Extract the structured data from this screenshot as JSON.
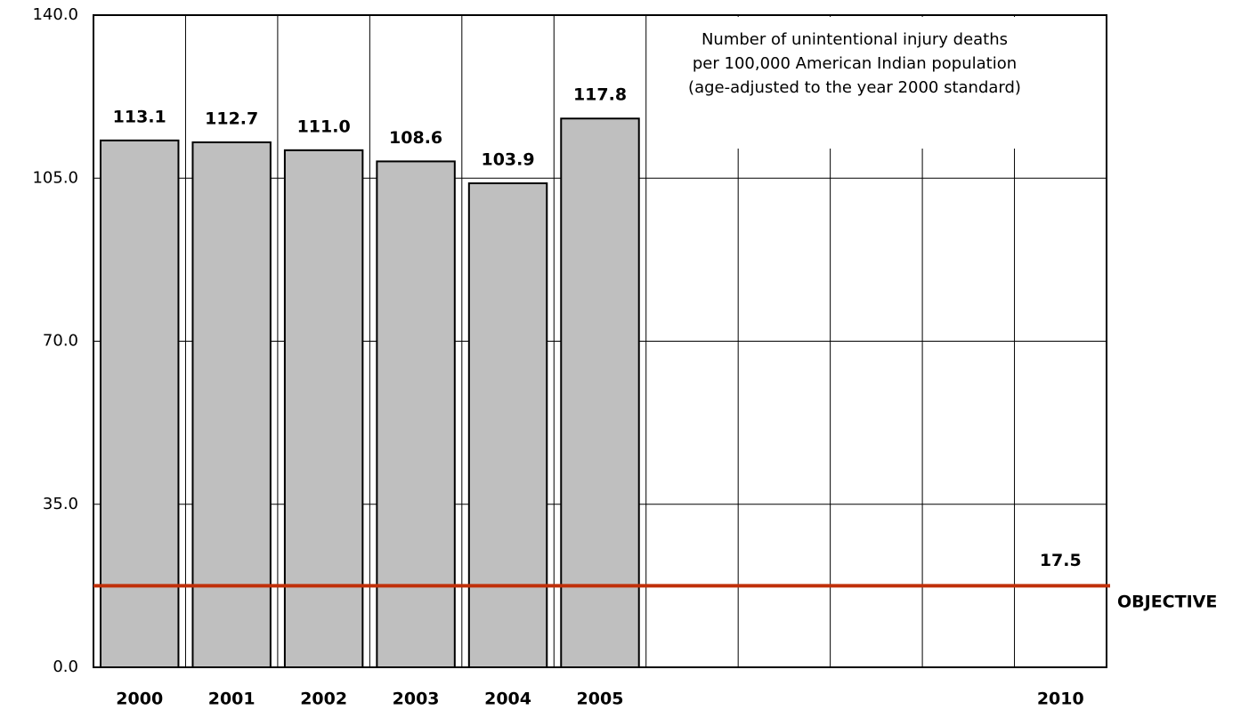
{
  "chart_data": {
    "type": "bar",
    "categories": [
      "2000",
      "2001",
      "2002",
      "2003",
      "2004",
      "2005",
      null,
      null,
      null,
      null,
      "2010"
    ],
    "values": [
      113.1,
      112.7,
      111.0,
      108.6,
      103.9,
      117.8,
      null,
      null,
      null,
      null,
      null
    ],
    "value_labels": [
      "113.1",
      "112.7",
      "111.0",
      "108.6",
      "103.9",
      "117.8",
      null,
      null,
      null,
      null,
      null
    ],
    "color": "#bfbfbf",
    "ylim": [
      0,
      140
    ],
    "yticks": [
      {
        "value": 0,
        "label": "0.0"
      },
      {
        "value": 35,
        "label": "35.0"
      },
      {
        "value": 70,
        "label": "70.0"
      },
      {
        "value": 105,
        "label": "105.0"
      },
      {
        "value": 140,
        "label": "140.0"
      }
    ],
    "grid": true,
    "annotation": [
      "Number of unintentional injury deaths",
      "per 100,000 American Indian population",
      "(age-adjusted to the year 2000 standard)"
    ],
    "objective": {
      "value": 17.5,
      "value_label": "17.5",
      "label": "OBJECTIVE",
      "color": "#c0300a"
    }
  }
}
